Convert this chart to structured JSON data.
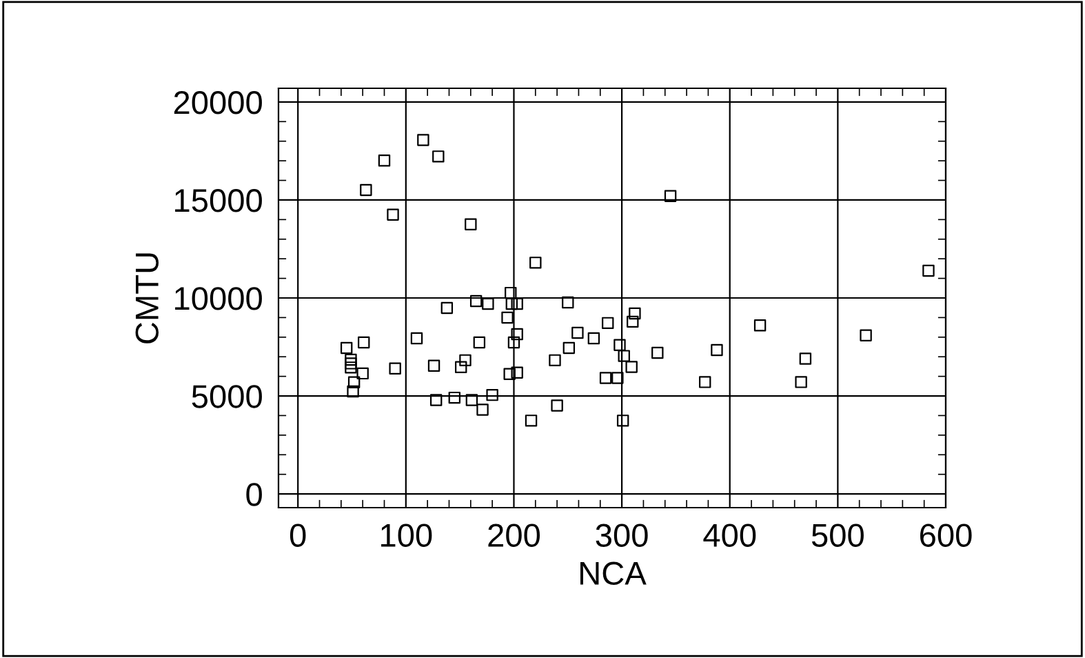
{
  "chart_data": {
    "type": "scatter",
    "xlabel": "NCA",
    "ylabel": "CMTU",
    "marker": "square",
    "grid": true,
    "xlim": [
      -18,
      600
    ],
    "ylim": [
      -700,
      20700
    ],
    "xticks": [
      0,
      {
        "value": 20,
        "label": null
      },
      {
        "value": 40,
        "label": null
      },
      {
        "value": 60,
        "label": null
      },
      {
        "value": 80,
        "label": null
      },
      100,
      {
        "value": 120,
        "label": null
      },
      {
        "value": 140,
        "label": null
      },
      {
        "value": 160,
        "label": null
      },
      {
        "value": 180,
        "label": null
      },
      200,
      {
        "value": 220,
        "label": null
      },
      {
        "value": 240,
        "label": null
      },
      {
        "value": 260,
        "label": null
      },
      {
        "value": 280,
        "label": null
      },
      300,
      {
        "value": 320,
        "label": null
      },
      {
        "value": 340,
        "label": null
      },
      {
        "value": 360,
        "label": null
      },
      {
        "value": 380,
        "label": null
      },
      400,
      {
        "value": 420,
        "label": null
      },
      {
        "value": 440,
        "label": null
      },
      {
        "value": 460,
        "label": null
      },
      {
        "value": 480,
        "label": null
      },
      500,
      {
        "value": 520,
        "label": null
      },
      {
        "value": 540,
        "label": null
      },
      {
        "value": 560,
        "label": null
      },
      {
        "value": 580,
        "label": null
      },
      600
    ],
    "yticks": [
      0,
      {
        "value": 1000,
        "label": null
      },
      {
        "value": 2000,
        "label": null
      },
      {
        "value": 3000,
        "label": null
      },
      {
        "value": 4000,
        "label": null
      },
      5000,
      {
        "value": 6000,
        "label": null
      },
      {
        "value": 7000,
        "label": null
      },
      {
        "value": 8000,
        "label": null
      },
      {
        "value": 9000,
        "label": null
      },
      10000,
      {
        "value": 11000,
        "label": null
      },
      {
        "value": 12000,
        "label": null
      },
      {
        "value": 13000,
        "label": null
      },
      {
        "value": 14000,
        "label": null
      },
      15000,
      {
        "value": 16000,
        "label": null
      },
      {
        "value": 17000,
        "label": null
      },
      {
        "value": 18000,
        "label": null
      },
      {
        "value": 19000,
        "label": null
      },
      20000
    ],
    "series": [
      {
        "color": "#000000",
        "x": [
          116,
          130,
          80,
          63,
          88,
          160,
          220,
          197,
          165,
          176,
          198,
          203,
          250,
          138,
          194,
          287,
          259,
          274,
          203,
          110,
          61,
          168,
          200,
          45,
          251,
          49,
          49,
          49,
          155,
          238,
          126,
          90,
          151,
          60,
          196,
          203,
          285,
          296,
          52,
          51,
          128,
          145,
          161,
          180,
          171,
          240,
          216,
          345,
          584,
          312,
          310,
          428,
          526,
          298,
          302,
          333,
          388,
          309,
          470,
          377,
          466,
          301
        ],
        "values": [
          18060,
          17220,
          17010,
          15510,
          14250,
          13760,
          11800,
          10260,
          9840,
          9700,
          9700,
          9700,
          9770,
          9490,
          9000,
          8720,
          8220,
          7940,
          8150,
          7940,
          7730,
          7730,
          7730,
          7450,
          7450,
          6850,
          6660,
          6450,
          6820,
          6820,
          6540,
          6400,
          6470,
          6150,
          6120,
          6190,
          5920,
          5920,
          5700,
          5230,
          4790,
          4910,
          4790,
          5050,
          4300,
          4510,
          3740,
          15200,
          11390,
          9210,
          8790,
          8600,
          8090,
          7600,
          7040,
          7200,
          7340,
          6480,
          6900,
          5710,
          5710,
          3740
        ]
      }
    ]
  }
}
